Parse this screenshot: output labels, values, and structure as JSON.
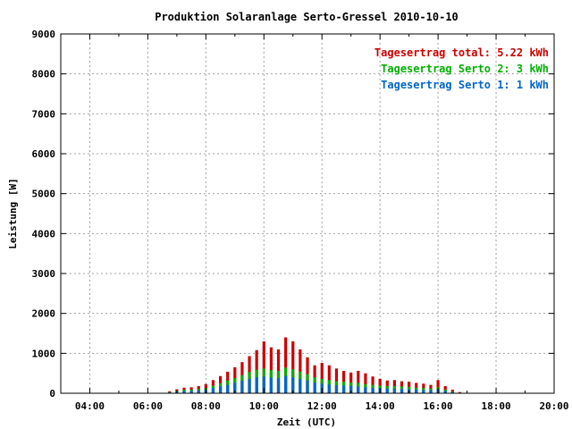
{
  "chart_data": {
    "type": "bar",
    "title": "Produktion Solaranlage Serto-Gressel 2010-10-10",
    "xlabel": "Zeit (UTC)",
    "ylabel": "Leistung [W]",
    "x_range_hours": [
      3.0,
      20.0
    ],
    "xlim": [
      "03:00",
      "20:00"
    ],
    "ylim": [
      0,
      9000
    ],
    "x_ticks": [
      "04:00",
      "06:00",
      "08:00",
      "10:00",
      "12:00",
      "14:00",
      "16:00",
      "18:00",
      "20:00"
    ],
    "y_ticks": [
      "0",
      "1000",
      "2000",
      "3000",
      "4000",
      "5000",
      "6000",
      "7000",
      "8000",
      "9000"
    ],
    "grid": true,
    "stacked": true,
    "legend_position": "top-right",
    "legend": [
      {
        "label": "Tagesertrag total: 5.22 kWh",
        "color": "#cc0000"
      },
      {
        "label": "Tagesertrag Serto 2: 3 kWh",
        "color": "#00b000"
      },
      {
        "label": "Tagesertrag Serto 1: 1 kWh",
        "color": "#0066cc"
      }
    ],
    "x": [
      "06:45",
      "07:00",
      "07:15",
      "07:30",
      "07:45",
      "08:00",
      "08:15",
      "08:30",
      "08:45",
      "09:00",
      "09:15",
      "09:30",
      "09:45",
      "10:00",
      "10:15",
      "10:30",
      "10:45",
      "11:00",
      "11:15",
      "11:30",
      "11:45",
      "12:00",
      "12:15",
      "12:30",
      "12:45",
      "13:00",
      "13:15",
      "13:30",
      "13:45",
      "14:00",
      "14:15",
      "14:30",
      "14:45",
      "15:00",
      "15:15",
      "15:30",
      "15:45",
      "16:00",
      "16:15",
      "16:30",
      "16:45"
    ],
    "series": [
      {
        "name": "Serto 1",
        "color": "#0066cc",
        "values": [
          20,
          40,
          55,
          60,
          70,
          90,
          130,
          170,
          210,
          260,
          310,
          360,
          400,
          420,
          390,
          380,
          430,
          400,
          360,
          320,
          270,
          240,
          220,
          200,
          190,
          180,
          170,
          150,
          140,
          130,
          120,
          120,
          110,
          105,
          95,
          85,
          80,
          100,
          60,
          30,
          10
        ]
      },
      {
        "name": "Serto 2",
        "color": "#00b000",
        "values": [
          30,
          60,
          85,
          90,
          105,
          135,
          190,
          250,
          320,
          380,
          450,
          530,
          590,
          620,
          580,
          560,
          640,
          600,
          540,
          480,
          400,
          360,
          330,
          300,
          290,
          270,
          260,
          230,
          210,
          190,
          180,
          180,
          170,
          160,
          140,
          130,
          120,
          150,
          90,
          40,
          15
        ]
      },
      {
        "name": "total",
        "color": "#cc0000",
        "values": [
          50,
          100,
          140,
          150,
          180,
          230,
          330,
          430,
          540,
          650,
          780,
          930,
          1080,
          1300,
          1150,
          1100,
          1400,
          1300,
          1100,
          900,
          700,
          760,
          700,
          620,
          560,
          520,
          560,
          500,
          420,
          360,
          320,
          330,
          300,
          290,
          260,
          240,
          210,
          330,
          180,
          90,
          30
        ]
      }
    ]
  }
}
